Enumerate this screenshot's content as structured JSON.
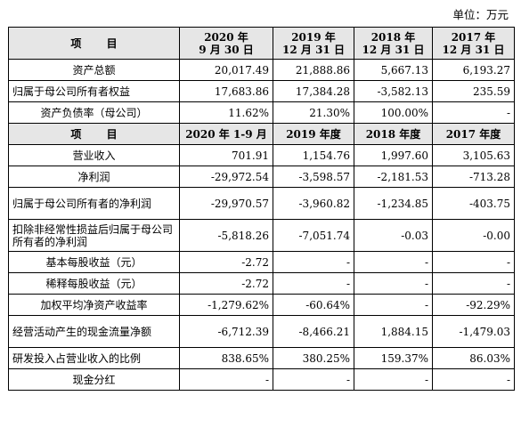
{
  "unit_label": "单位：万元",
  "header1": {
    "item": "项  目",
    "cols": [
      {
        "year": "2020 年",
        "date": "9 月 30 日"
      },
      {
        "year": "2019 年",
        "date": "12 月 31 日"
      },
      {
        "year": "2018 年",
        "date": "12 月 31 日"
      },
      {
        "year": "2017 年",
        "date": "12 月 31 日"
      }
    ]
  },
  "balance_rows": [
    {
      "label": "资产总额",
      "values": [
        "20,017.49",
        "21,888.86",
        "5,667.13",
        "6,193.27"
      ]
    },
    {
      "label": "归属于母公司所有者权益",
      "values": [
        "17,683.86",
        "17,384.28",
        "-3,582.13",
        "235.59"
      ]
    },
    {
      "label": "资产负债率（母公司）",
      "values": [
        "11.62%",
        "21.30%",
        "100.00%",
        "-"
      ]
    }
  ],
  "header2": {
    "item": "项  目",
    "cols": [
      "2020 年 1-9 月",
      "2019 年度",
      "2018 年度",
      "2017 年度"
    ]
  },
  "income_rows": [
    {
      "label": "营业收入",
      "values": [
        "701.91",
        "1,154.76",
        "1,997.60",
        "3,105.63"
      ]
    },
    {
      "label": "净利润",
      "values": [
        "-29,972.54",
        "-3,598.57",
        "-2,181.53",
        "-713.28"
      ]
    },
    {
      "label": "归属于母公司所有者的净利润",
      "values": [
        "-29,970.57",
        "-3,960.82",
        "-1,234.85",
        "-403.75"
      ]
    },
    {
      "label": "扣除非经常性损益后归属于母公司所有者的净利润",
      "values": [
        "-5,818.26",
        "-7,051.74",
        "-0.03",
        "-0.00"
      ]
    },
    {
      "label": "基本每股收益（元）",
      "values": [
        "-2.72",
        "-",
        "-",
        "-"
      ]
    },
    {
      "label": "稀释每股收益（元）",
      "values": [
        "-2.72",
        "-",
        "-",
        "-"
      ]
    },
    {
      "label": "加权平均净资产收益率",
      "values": [
        "-1,279.62%",
        "-60.64%",
        "-",
        "-92.29%"
      ]
    },
    {
      "label": "经营活动产生的现金流量净额",
      "values": [
        "-6,712.39",
        "-8,466.21",
        "1,884.15",
        "-1,479.03"
      ]
    },
    {
      "label": "研发投入占营业收入的比例",
      "values": [
        "838.65%",
        "380.25%",
        "159.37%",
        "86.03%"
      ]
    },
    {
      "label": "现金分红",
      "values": [
        "-",
        "-",
        "-",
        "-"
      ]
    }
  ]
}
